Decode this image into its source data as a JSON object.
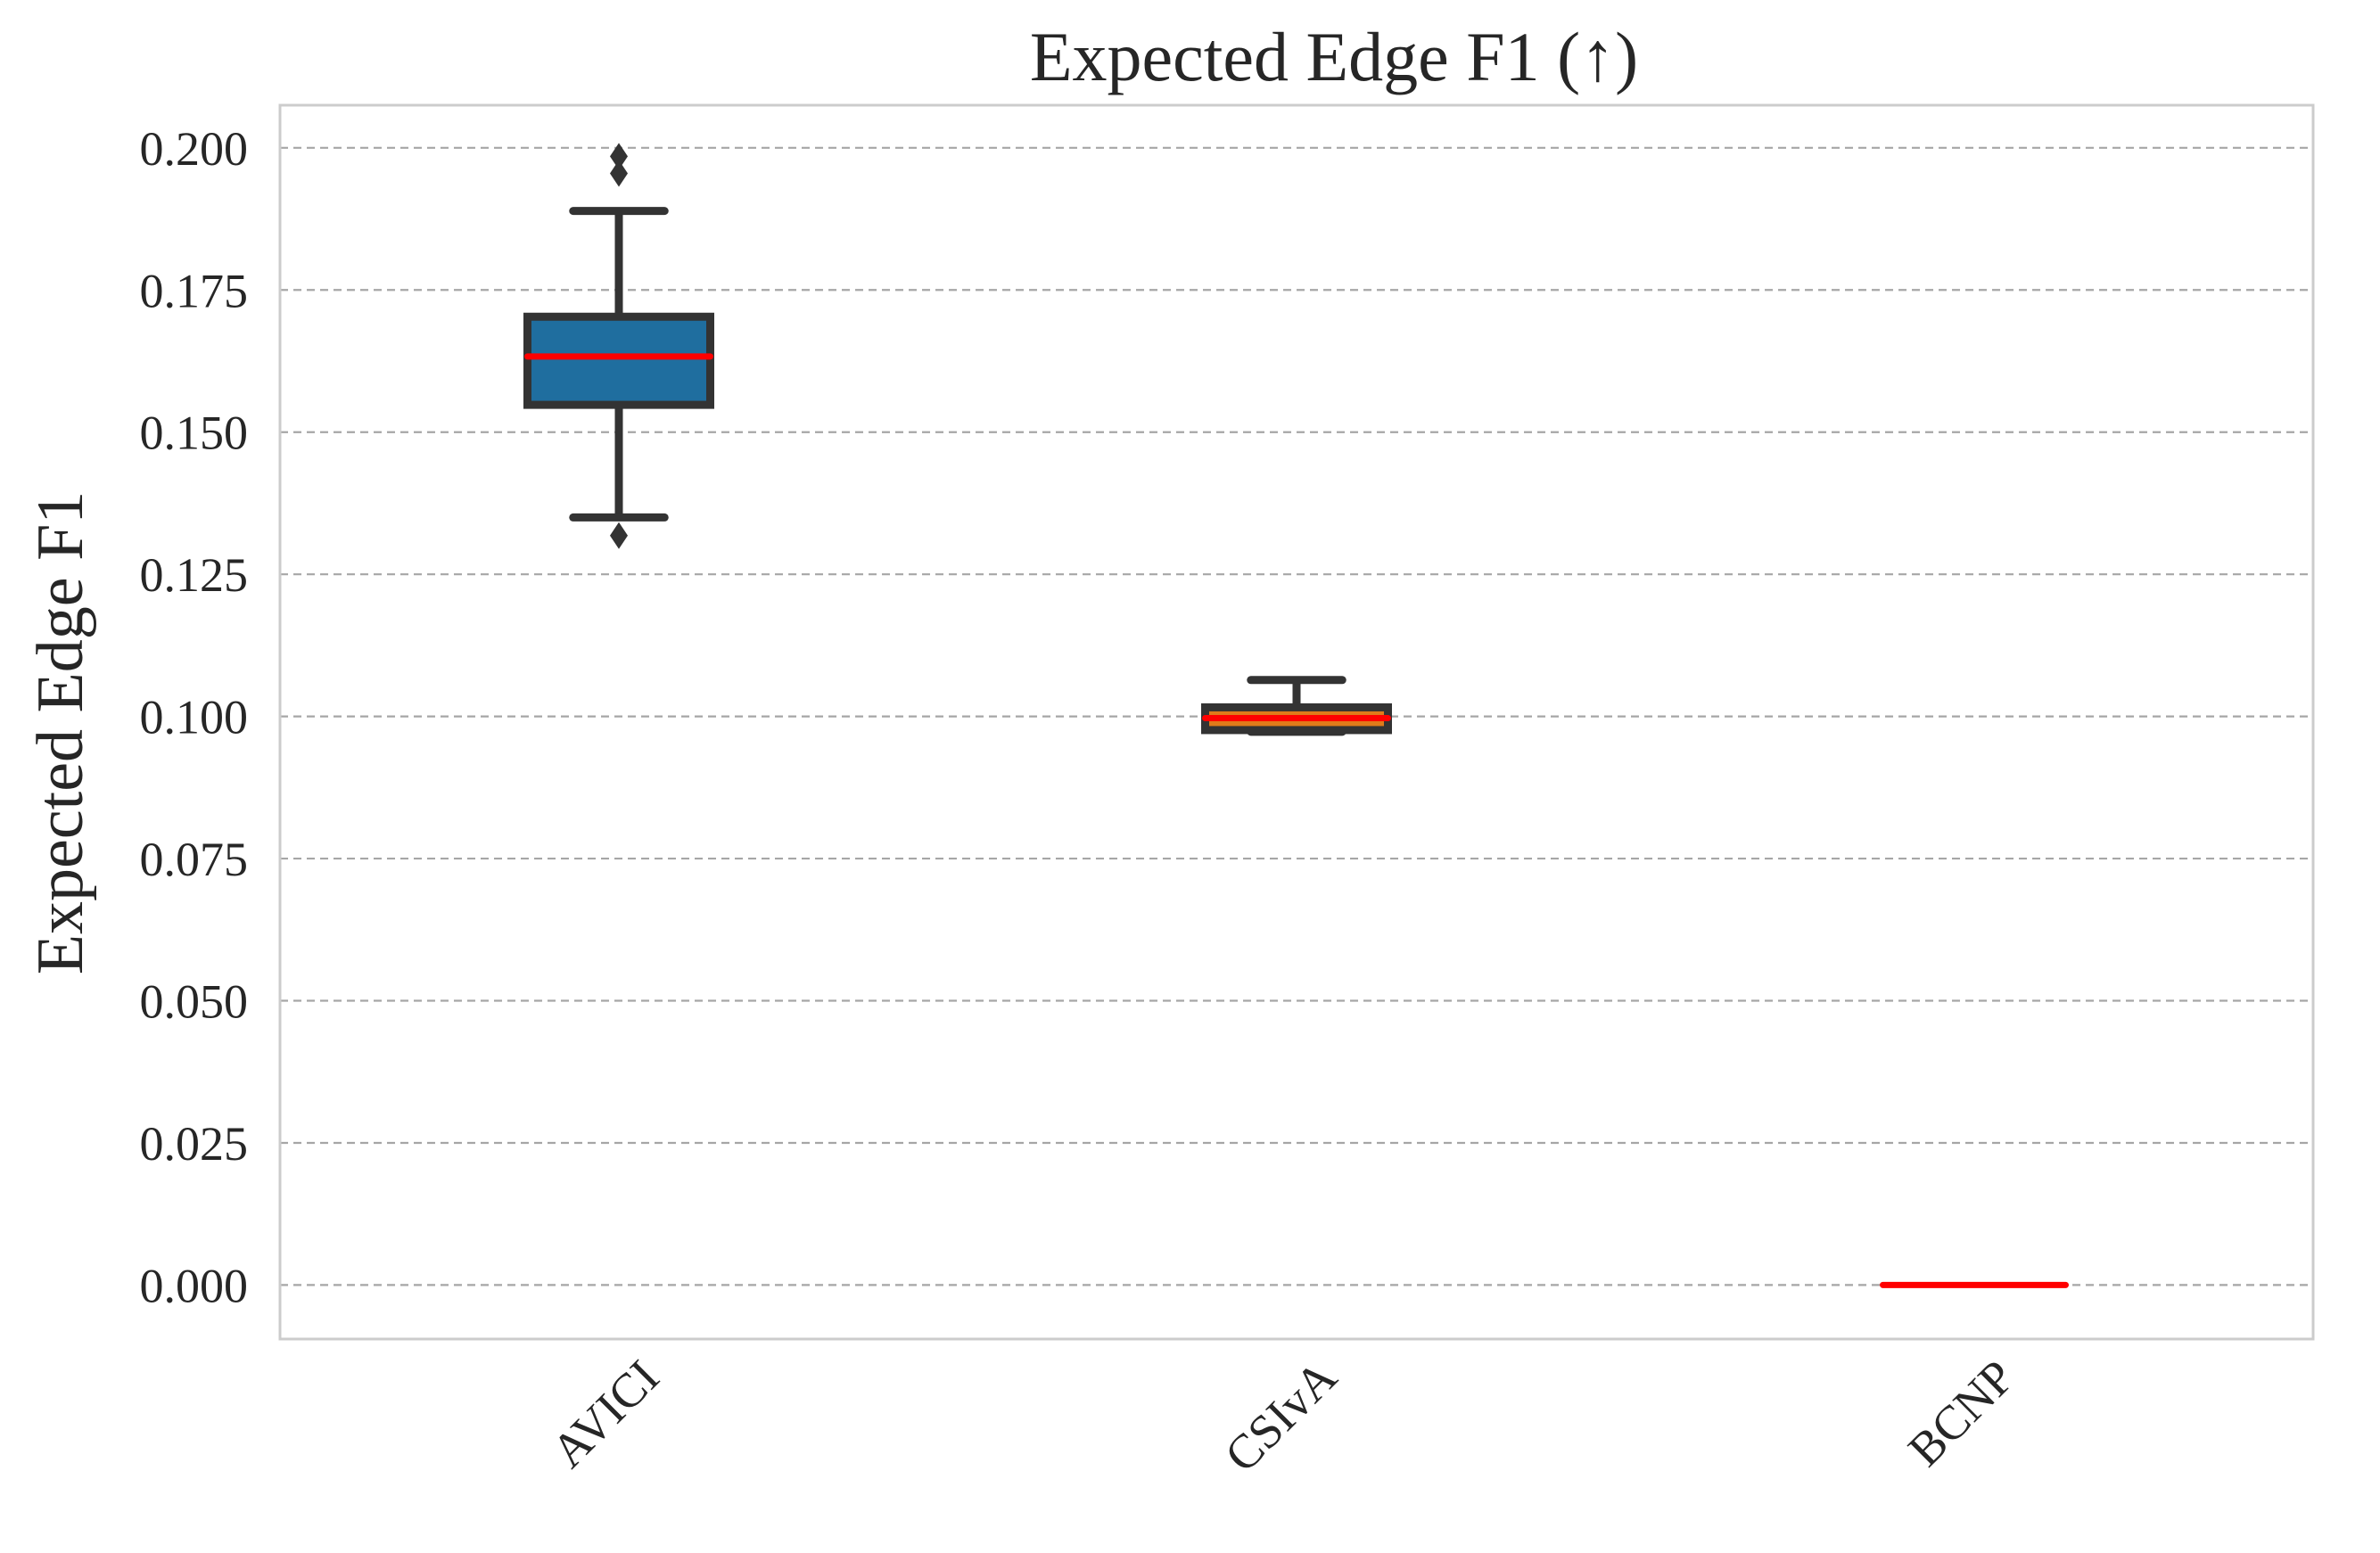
{
  "chart_data": {
    "type": "box",
    "title": "Expected Edge F1 (↑)",
    "xlabel": "",
    "ylabel": "Expected Edge F1",
    "ylim": [
      -0.0095,
      0.2075
    ],
    "yticks": [
      0.0,
      0.025,
      0.05,
      0.075,
      0.1,
      0.125,
      0.15,
      0.175,
      0.2
    ],
    "ytick_labels": [
      "0.000",
      "0.025",
      "0.050",
      "0.075",
      "0.100",
      "0.125",
      "0.150",
      "0.175",
      "0.200"
    ],
    "grid": "y-dashed",
    "categories": [
      "AVICI",
      "CSIvA",
      "BCNP"
    ],
    "boxes": [
      {
        "name": "AVICI",
        "whisker_low": 0.135,
        "q1": 0.1548,
        "median": 0.1633,
        "q3": 0.1703,
        "whisker_high": 0.1889,
        "outliers": [
          0.1318,
          0.1955,
          0.1985
        ],
        "color": "#1f6e9f"
      },
      {
        "name": "CSIvA",
        "whisker_low": 0.0973,
        "q1": 0.0976,
        "median": 0.0997,
        "q3": 0.1016,
        "whisker_high": 0.1064,
        "outliers": [],
        "color": "#e07b1a"
      },
      {
        "name": "BCNP",
        "whisker_low": 0.0,
        "q1": 0.0,
        "median": 0.0,
        "q3": 0.0,
        "whisker_high": 0.0,
        "outliers": [],
        "color": "#2a9d3a"
      }
    ],
    "median_color": "#ff0000",
    "edge_color": "#333333"
  }
}
